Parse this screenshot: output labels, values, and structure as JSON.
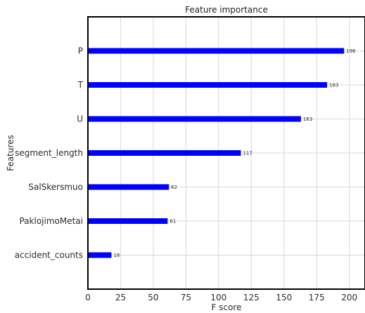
{
  "chart_data": {
    "type": "bar",
    "orientation": "horizontal",
    "title": "Feature importance",
    "xlabel": "F score",
    "ylabel": "Features",
    "categories": [
      "P",
      "T",
      "U",
      "segment_length",
      "SalSkersmuo",
      "PaklojimoMetai",
      "accident_counts"
    ],
    "values": [
      196,
      183,
      163,
      117,
      62,
      61,
      18
    ],
    "xlim": [
      0,
      212
    ],
    "xticks": [
      0,
      25,
      50,
      75,
      100,
      125,
      150,
      175,
      200
    ],
    "grid": true,
    "bar_color": "#0000ff",
    "data_labels": true
  }
}
